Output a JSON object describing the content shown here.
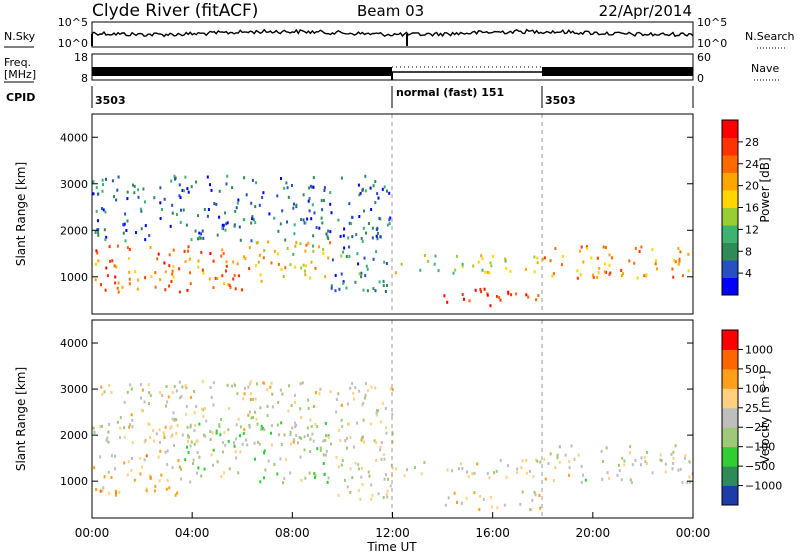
{
  "header": {
    "station": "Clyde River (fitACF)",
    "beam": "Beam 03",
    "date": "22/Apr/2014"
  },
  "noise_panel": {
    "left_label": "N.Sky",
    "right_label": "N.Search",
    "left_ticks": [
      "10^5",
      "10^0"
    ],
    "right_ticks": [
      "10^5",
      "10^0"
    ]
  },
  "freq_panel": {
    "left_label_1": "Freq.",
    "left_label_2": "[MHz]",
    "left_ticks": [
      "18",
      "8"
    ],
    "right_label": "Nave",
    "right_ticks": [
      "60",
      "0"
    ]
  },
  "cpid": {
    "label": "CPID",
    "segments": [
      {
        "label": "3503",
        "start_hour": 0
      },
      {
        "label": "normal (fast) 151",
        "start_hour": 12
      },
      {
        "label": "3503",
        "start_hour": 18
      }
    ]
  },
  "range_axis": {
    "label": "Slant Range [km]",
    "ticks": [
      "4000",
      "3000",
      "2000",
      "1000"
    ]
  },
  "time_axis": {
    "label": "Time UT",
    "ticks": [
      "00:00",
      "04:00",
      "08:00",
      "12:00",
      "16:00",
      "20:00",
      "00:00"
    ]
  },
  "power_colorbar": {
    "label": "Power [dB]",
    "ticks": [
      "28",
      "24",
      "20",
      "16",
      "12",
      "8",
      "4"
    ],
    "colors": [
      "#0000ff",
      "#2850c0",
      "#2e8b57",
      "#3cb371",
      "#9acd32",
      "#ffd700",
      "#ffa500",
      "#ff6a00",
      "#ff3300",
      "#ff0000"
    ]
  },
  "velocity_colorbar": {
    "label": "Velocity [m s⁻¹]",
    "ticks": [
      "1000",
      "500",
      "100",
      "25",
      "−25",
      "−100",
      "−500",
      "−1000"
    ],
    "colors": [
      "#1e3ca8",
      "#2e8b57",
      "#32cd32",
      "#a0c878",
      "#bebebe",
      "#ffd080",
      "#ff9f1a",
      "#ff6600",
      "#ff0000"
    ]
  },
  "chart_data": [
    {
      "type": "heatmap",
      "title": "Power",
      "x_range_hours": [
        0,
        24
      ],
      "y_range_km": [
        200,
        4500
      ],
      "colorbar_range_db": [
        0,
        32
      ],
      "regions": [
        {
          "t0": 0.0,
          "t1": 6.5,
          "r_lo": 700,
          "r_hi": 1700,
          "value_db": 24
        },
        {
          "t0": 6.5,
          "t1": 9.5,
          "r_lo": 800,
          "r_hi": 1800,
          "value_db": 18
        },
        {
          "t0": 9.5,
          "t1": 12.0,
          "r_lo": 700,
          "r_hi": 2000,
          "value_db": 8
        },
        {
          "t0": 12.0,
          "t1": 18.0,
          "r_lo": 1100,
          "r_hi": 1500,
          "value_db": 16
        },
        {
          "t0": 14.0,
          "t1": 18.0,
          "r_lo": 400,
          "r_hi": 800,
          "value_db": 28
        },
        {
          "t0": 18.0,
          "t1": 24.0,
          "r_lo": 1000,
          "r_hi": 1700,
          "value_db": 22
        },
        {
          "t0": 0.0,
          "t1": 12.0,
          "r_lo": 1800,
          "r_hi": 3200,
          "value_db": 6
        }
      ]
    },
    {
      "type": "heatmap",
      "title": "Velocity",
      "x_range_hours": [
        0,
        24
      ],
      "y_range_km": [
        200,
        4500
      ],
      "colorbar_range_ms": [
        -1000,
        1000
      ],
      "regions": [
        {
          "t0": 0.0,
          "t1": 3.5,
          "r_lo": 700,
          "r_hi": 1700,
          "value_ms": 300
        },
        {
          "t0": 3.5,
          "t1": 9.5,
          "r_lo": 1000,
          "r_hi": 2300,
          "value_ms": -200
        },
        {
          "t0": 9.5,
          "t1": 12.0,
          "r_lo": 600,
          "r_hi": 2000,
          "value_ms": 0
        },
        {
          "t0": 12.0,
          "t1": 18.0,
          "r_lo": 1100,
          "r_hi": 1500,
          "value_ms": 0
        },
        {
          "t0": 14.0,
          "t1": 18.0,
          "r_lo": 400,
          "r_hi": 800,
          "value_ms": 200
        },
        {
          "t0": 18.0,
          "t1": 24.0,
          "r_lo": 1000,
          "r_hi": 1800,
          "value_ms": 0
        },
        {
          "t0": 0.0,
          "t1": 12.0,
          "r_lo": 1800,
          "r_hi": 3200,
          "value_ms": 50
        }
      ]
    }
  ]
}
